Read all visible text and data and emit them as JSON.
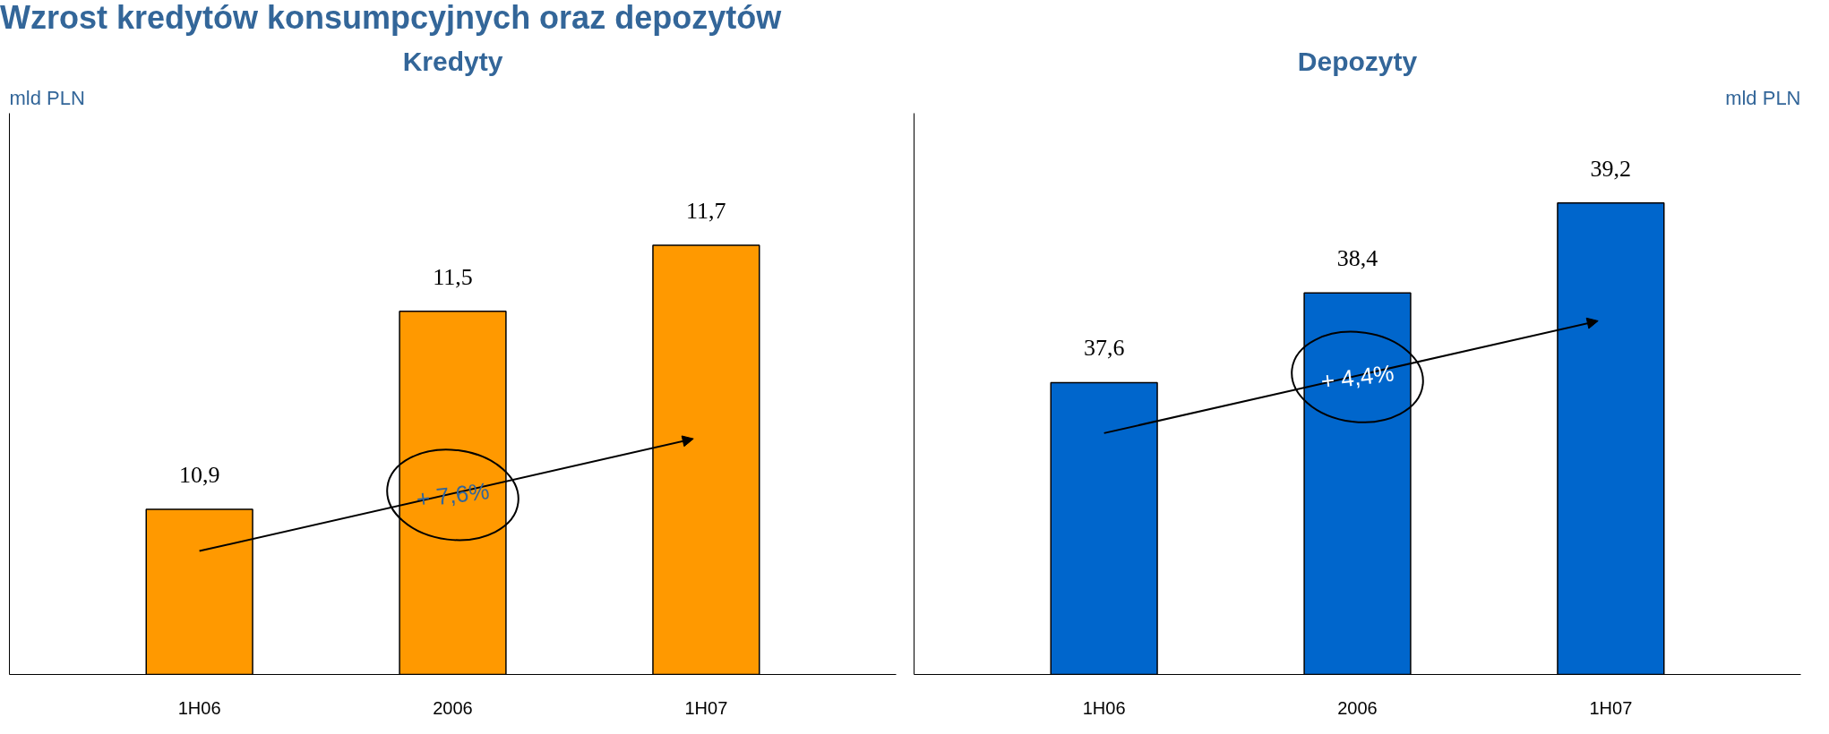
{
  "chart_data": [
    {
      "type": "bar",
      "title": "Wzrost kredytów konsumpcyjnych oraz depozytów",
      "subtitle": "Kredyty",
      "ylabel": "mld PLN",
      "categories": [
        "1H06",
        "2006",
        "1H07"
      ],
      "values": [
        10.9,
        11.5,
        11.7
      ],
      "value_labels": [
        "10,9",
        "11,5",
        "11,7"
      ],
      "color": "#ff9900",
      "ylim": [
        10.4,
        12.1
      ],
      "tick_labels": "x",
      "annotations": [
        "+ 7,6%"
      ]
    },
    {
      "type": "bar",
      "title": "Depozyty",
      "ylabel": "mld PLN",
      "categories": [
        "1H06",
        "2006",
        "1H07"
      ],
      "values": [
        37.6,
        38.4,
        39.2
      ],
      "value_labels": [
        "37,6",
        "38,4",
        "39,2"
      ],
      "color": "#0066cc",
      "ylim": [
        35.0,
        40.0
      ],
      "tick_labels": "x",
      "annotations": [
        "+ 4,4%"
      ]
    }
  ]
}
